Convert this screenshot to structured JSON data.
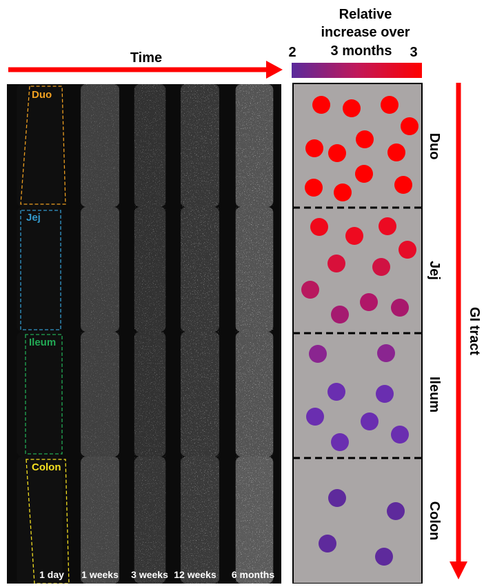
{
  "header": {
    "time_label": "Time",
    "colorbar_title": [
      "Relative",
      "increase over",
      "3 months"
    ],
    "colorbar_min": "2",
    "colorbar_max": "3"
  },
  "rows": [
    {
      "label": "Duo"
    },
    {
      "label": "Jej"
    },
    {
      "label": "Ileum"
    },
    {
      "label": "Colon"
    }
  ],
  "columns": [
    "1 day",
    "1 weeks",
    "3 weeks",
    "12 weeks",
    "6 months"
  ],
  "axis_label": "GI tract"
}
